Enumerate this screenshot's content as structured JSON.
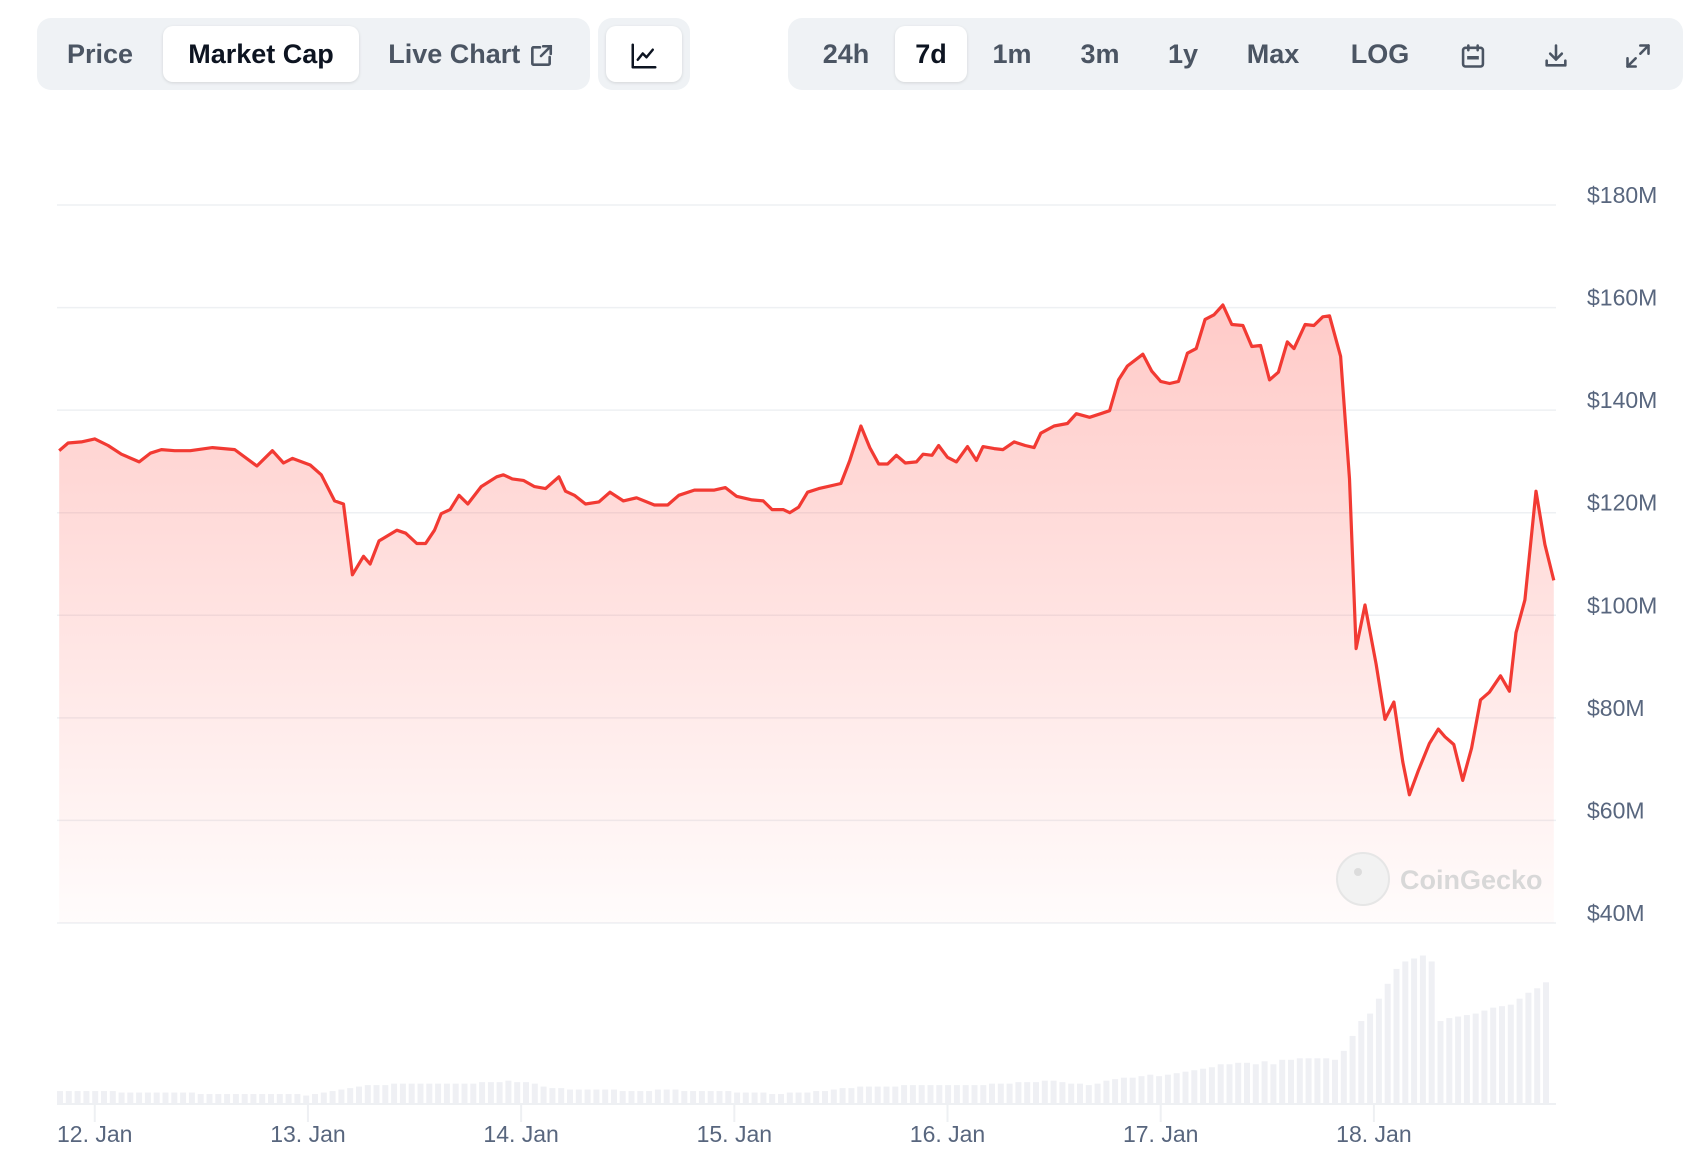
{
  "toolbar": {
    "data_tabs": [
      {
        "label": "Price",
        "active": false
      },
      {
        "label": "Market Cap",
        "active": true
      },
      {
        "label": "Live Chart",
        "active": false,
        "icon": "external-link-icon"
      }
    ],
    "chart_type_icon": "line-chart-icon",
    "ranges": [
      {
        "label": "24h",
        "active": false
      },
      {
        "label": "7d",
        "active": true
      },
      {
        "label": "1m",
        "active": false
      },
      {
        "label": "3m",
        "active": false
      },
      {
        "label": "1y",
        "active": false
      },
      {
        "label": "Max",
        "active": false
      },
      {
        "label": "LOG",
        "active": false
      }
    ],
    "icons": [
      "calendar-icon",
      "download-icon",
      "expand-icon"
    ]
  },
  "watermark": "CoinGecko",
  "colors": {
    "line": "#f23a33",
    "fill": "#ff5a52",
    "volume": "#eff0f4",
    "grid": "#eef0f3",
    "axis_text": "#58667e"
  },
  "chart_data": {
    "type": "area",
    "title": "",
    "xlabel": "",
    "ylabel": "",
    "y_axis_position": "right",
    "ylim": [
      40,
      180
    ],
    "yticks": [
      {
        "value": 180,
        "label": "$180M"
      },
      {
        "value": 160,
        "label": "$160M"
      },
      {
        "value": 140,
        "label": "$140M"
      },
      {
        "value": 120,
        "label": "$120M"
      },
      {
        "value": 100,
        "label": "$100M"
      },
      {
        "value": 80,
        "label": "$80M"
      },
      {
        "value": 60,
        "label": "$60M"
      },
      {
        "value": 40,
        "label": "$40M"
      }
    ],
    "xlim": [
      "11 Jan 19:45",
      "18 Jan 20:30"
    ],
    "xticks": [
      {
        "value": "12 Jan 00:00",
        "label": "12. Jan"
      },
      {
        "value": "13 Jan 00:00",
        "label": "13. Jan"
      },
      {
        "value": "14 Jan 00:00",
        "label": "14. Jan"
      },
      {
        "value": "15 Jan 00:00",
        "label": "15. Jan"
      },
      {
        "value": "16 Jan 00:00",
        "label": "16. Jan"
      },
      {
        "value": "17 Jan 00:00",
        "label": "17. Jan"
      },
      {
        "value": "18 Jan 00:00",
        "label": "18. Jan"
      }
    ],
    "grid": true,
    "units": "USD millions",
    "market_cap": [
      [
        "11 Jan 20:00",
        132.1
      ],
      [
        "11 Jan 21:00",
        133.6
      ],
      [
        "11 Jan 22:30",
        133.8
      ],
      [
        "12 Jan 00:00",
        134.4
      ],
      [
        "12 Jan 01:30",
        133.1
      ],
      [
        "12 Jan 03:00",
        131.4
      ],
      [
        "12 Jan 05:00",
        129.9
      ],
      [
        "12 Jan 06:15",
        131.6
      ],
      [
        "12 Jan 07:30",
        132.3
      ],
      [
        "12 Jan 09:00",
        132.1
      ],
      [
        "12 Jan 10:45",
        132.1
      ],
      [
        "12 Jan 13:15",
        132.7
      ],
      [
        "12 Jan 15:45",
        132.3
      ],
      [
        "12 Jan 18:15",
        129.1
      ],
      [
        "12 Jan 20:00",
        132.1
      ],
      [
        "12 Jan 21:15",
        129.7
      ],
      [
        "12 Jan 22:15",
        130.6
      ],
      [
        "13 Jan 00:15",
        129.3
      ],
      [
        "13 Jan 01:30",
        127.4
      ],
      [
        "13 Jan 03:00",
        122.3
      ],
      [
        "13 Jan 04:00",
        121.7
      ],
      [
        "13 Jan 05:00",
        107.9
      ],
      [
        "13 Jan 06:15",
        111.5
      ],
      [
        "13 Jan 07:00",
        110.0
      ],
      [
        "13 Jan 08:00",
        114.5
      ],
      [
        "13 Jan 10:00",
        116.6
      ],
      [
        "13 Jan 11:00",
        116.0
      ],
      [
        "13 Jan 12:15",
        114.0
      ],
      [
        "13 Jan 13:15",
        114.0
      ],
      [
        "13 Jan 14:15",
        116.6
      ],
      [
        "13 Jan 15:00",
        119.8
      ],
      [
        "13 Jan 16:00",
        120.6
      ],
      [
        "13 Jan 17:00",
        123.4
      ],
      [
        "13 Jan 18:00",
        121.7
      ],
      [
        "13 Jan 19:30",
        125.1
      ],
      [
        "13 Jan 21:15",
        127.0
      ],
      [
        "13 Jan 22:00",
        127.4
      ],
      [
        "13 Jan 23:00",
        126.6
      ],
      [
        "14 Jan 00:15",
        126.3
      ],
      [
        "14 Jan 01:30",
        125.1
      ],
      [
        "14 Jan 02:45",
        124.7
      ],
      [
        "14 Jan 04:15",
        127.0
      ],
      [
        "14 Jan 05:00",
        124.2
      ],
      [
        "14 Jan 06:00",
        123.4
      ],
      [
        "14 Jan 07:15",
        121.7
      ],
      [
        "14 Jan 08:45",
        122.1
      ],
      [
        "14 Jan 10:00",
        124.0
      ],
      [
        "14 Jan 11:30",
        122.3
      ],
      [
        "14 Jan 13:00",
        122.9
      ],
      [
        "14 Jan 15:00",
        121.5
      ],
      [
        "14 Jan 16:30",
        121.5
      ],
      [
        "14 Jan 17:45",
        123.4
      ],
      [
        "14 Jan 19:30",
        124.4
      ],
      [
        "14 Jan 21:45",
        124.4
      ],
      [
        "14 Jan 23:00",
        124.9
      ],
      [
        "15 Jan 00:15",
        123.2
      ],
      [
        "15 Jan 02:00",
        122.5
      ],
      [
        "15 Jan 03:15",
        122.3
      ],
      [
        "15 Jan 04:15",
        120.6
      ],
      [
        "15 Jan 05:30",
        120.6
      ],
      [
        "15 Jan 06:15",
        120.0
      ],
      [
        "15 Jan 07:15",
        121.1
      ],
      [
        "15 Jan 08:15",
        124.0
      ],
      [
        "15 Jan 09:30",
        124.7
      ],
      [
        "15 Jan 10:30",
        125.1
      ],
      [
        "15 Jan 12:00",
        125.7
      ],
      [
        "15 Jan 13:00",
        130.2
      ],
      [
        "15 Jan 14:15",
        136.9
      ],
      [
        "15 Jan 15:15",
        132.7
      ],
      [
        "15 Jan 16:15",
        129.5
      ],
      [
        "15 Jan 17:15",
        129.5
      ],
      [
        "15 Jan 18:15",
        131.2
      ],
      [
        "15 Jan 19:15",
        129.7
      ],
      [
        "15 Jan 20:30",
        129.9
      ],
      [
        "15 Jan 21:15",
        131.4
      ],
      [
        "15 Jan 22:15",
        131.2
      ],
      [
        "15 Jan 23:00",
        133.1
      ],
      [
        "16 Jan 00:00",
        130.8
      ],
      [
        "16 Jan 01:00",
        129.9
      ],
      [
        "16 Jan 02:15",
        132.9
      ],
      [
        "16 Jan 03:15",
        130.2
      ],
      [
        "16 Jan 04:00",
        132.9
      ],
      [
        "16 Jan 05:15",
        132.5
      ],
      [
        "16 Jan 06:15",
        132.3
      ],
      [
        "16 Jan 07:30",
        133.8
      ],
      [
        "16 Jan 08:45",
        133.1
      ],
      [
        "16 Jan 09:45",
        132.7
      ],
      [
        "16 Jan 10:30",
        135.5
      ],
      [
        "16 Jan 12:00",
        136.9
      ],
      [
        "16 Jan 13:30",
        137.4
      ],
      [
        "16 Jan 14:30",
        139.3
      ],
      [
        "16 Jan 16:00",
        138.6
      ],
      [
        "16 Jan 17:15",
        139.3
      ],
      [
        "16 Jan 18:15",
        139.9
      ],
      [
        "16 Jan 19:15",
        145.9
      ],
      [
        "16 Jan 20:15",
        148.6
      ],
      [
        "16 Jan 22:00",
        150.9
      ],
      [
        "16 Jan 23:00",
        147.6
      ],
      [
        "17 Jan 00:00",
        145.6
      ],
      [
        "17 Jan 01:00",
        145.2
      ],
      [
        "17 Jan 02:00",
        145.6
      ],
      [
        "17 Jan 03:00",
        151.1
      ],
      [
        "17 Jan 04:00",
        152.0
      ],
      [
        "17 Jan 05:00",
        157.7
      ],
      [
        "17 Jan 06:00",
        158.6
      ],
      [
        "17 Jan 07:00",
        160.5
      ],
      [
        "17 Jan 08:00",
        156.7
      ],
      [
        "17 Jan 09:15",
        156.5
      ],
      [
        "17 Jan 10:15",
        152.4
      ],
      [
        "17 Jan 11:15",
        152.6
      ],
      [
        "17 Jan 12:15",
        145.9
      ],
      [
        "17 Jan 13:15",
        147.4
      ],
      [
        "17 Jan 14:15",
        153.3
      ],
      [
        "17 Jan 15:00",
        152.0
      ],
      [
        "17 Jan 16:15",
        156.7
      ],
      [
        "17 Jan 17:15",
        156.5
      ],
      [
        "17 Jan 18:15",
        158.2
      ],
      [
        "17 Jan 19:00",
        158.4
      ],
      [
        "17 Jan 20:15",
        150.5
      ],
      [
        "17 Jan 21:15",
        126.6
      ],
      [
        "17 Jan 22:00",
        93.5
      ],
      [
        "17 Jan 23:00",
        102.0
      ],
      [
        "18 Jan 00:15",
        90.5
      ],
      [
        "18 Jan 01:15",
        79.7
      ],
      [
        "18 Jan 02:15",
        83.1
      ],
      [
        "18 Jan 03:15",
        71.4
      ],
      [
        "18 Jan 04:00",
        65.0
      ],
      [
        "18 Jan 05:00",
        69.7
      ],
      [
        "18 Jan 06:15",
        75.0
      ],
      [
        "18 Jan 07:15",
        77.8
      ],
      [
        "18 Jan 08:00",
        76.3
      ],
      [
        "18 Jan 09:00",
        74.8
      ],
      [
        "18 Jan 10:00",
        67.8
      ],
      [
        "18 Jan 11:00",
        74.1
      ],
      [
        "18 Jan 12:00",
        83.5
      ],
      [
        "18 Jan 13:00",
        85.0
      ],
      [
        "18 Jan 14:15",
        88.2
      ],
      [
        "18 Jan 15:15",
        85.2
      ],
      [
        "18 Jan 16:00",
        96.6
      ],
      [
        "18 Jan 17:00",
        103.0
      ],
      [
        "18 Jan 18:15",
        124.2
      ],
      [
        "18 Jan 19:15",
        113.8
      ],
      [
        "18 Jan 20:15",
        106.8
      ]
    ],
    "volume_relative_pct": [
      8,
      8,
      8,
      8,
      8,
      8,
      8,
      7,
      7,
      7,
      7,
      7,
      7,
      7,
      7,
      7,
      6,
      6,
      6,
      6,
      6,
      6,
      6,
      6,
      6,
      6,
      6,
      6,
      5,
      6,
      7,
      8,
      9,
      10,
      11,
      12,
      12,
      12,
      13,
      13,
      13,
      13,
      13,
      13,
      13,
      13,
      13,
      13,
      14,
      14,
      14,
      15,
      14,
      14,
      13,
      11,
      10,
      10,
      9,
      9,
      9,
      9,
      9,
      9,
      8,
      8,
      8,
      8,
      9,
      9,
      9,
      8,
      8,
      8,
      8,
      8,
      8,
      7,
      7,
      7,
      7,
      6,
      6,
      7,
      7,
      7,
      8,
      8,
      9,
      10,
      10,
      11,
      11,
      11,
      11,
      11,
      12,
      12,
      12,
      12,
      12,
      12,
      12,
      12,
      12,
      12,
      13,
      13,
      13,
      14,
      14,
      14,
      15,
      15,
      14,
      13,
      13,
      12,
      13,
      15,
      16,
      17,
      17,
      18,
      19,
      18,
      19,
      20,
      21,
      22,
      23,
      24,
      26,
      26,
      27,
      27,
      26,
      28,
      26,
      29,
      29,
      30,
      30,
      30,
      30,
      29,
      35,
      45,
      55,
      60,
      70,
      80,
      90,
      95,
      97,
      99,
      95,
      55,
      57,
      58,
      59,
      60,
      62,
      64,
      65,
      66,
      70,
      74,
      77,
      81
    ]
  }
}
